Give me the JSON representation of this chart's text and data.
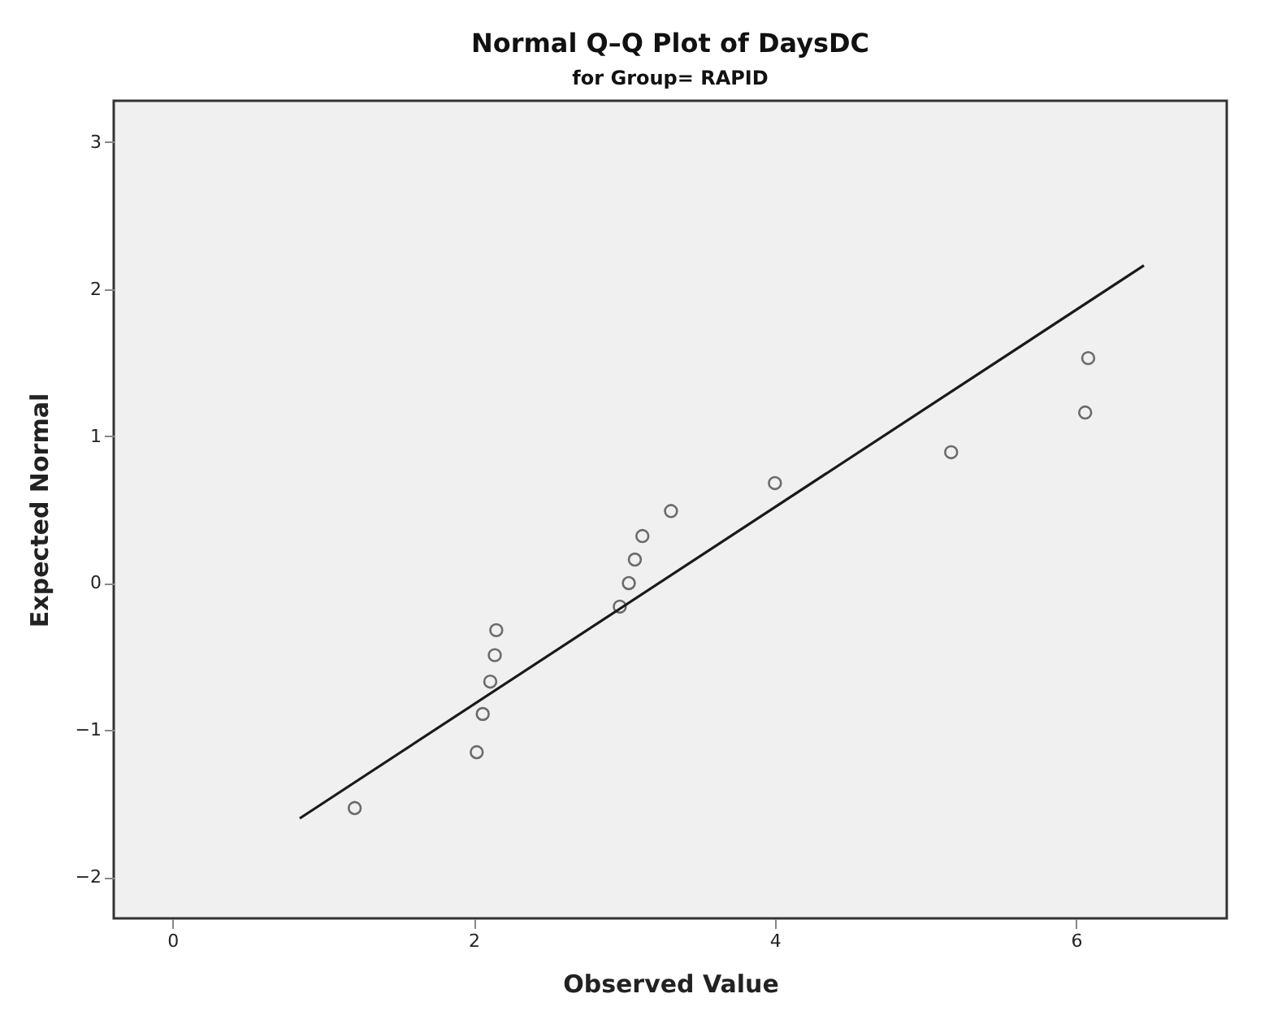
{
  "chart_data": {
    "type": "scatter",
    "title": "Normal Q–Q Plot of DaysDC",
    "subtitle": "for Group= RAPID",
    "xlabel": "Observed Value",
    "ylabel": "Expected Normal",
    "xlim": [
      -0.39,
      7.0
    ],
    "ylim": [
      -2.28,
      3.28
    ],
    "xticks": [
      0,
      2,
      4,
      6
    ],
    "yticks": [
      -2,
      -1,
      0,
      1,
      2,
      3
    ],
    "grid": false,
    "marker": "circle",
    "series": [
      {
        "type": "scatter",
        "color": "#333333",
        "x": [
          1.21,
          2.02,
          2.06,
          2.11,
          2.14,
          2.15,
          2.97,
          3.03,
          3.07,
          3.12,
          3.31,
          4.0,
          5.17,
          6.06,
          6.08
        ],
        "values": [
          -1.53,
          -1.15,
          -0.89,
          -0.67,
          -0.49,
          -0.32,
          -0.16,
          0,
          0.16,
          0.32,
          0.49,
          0.68,
          0.89,
          1.16,
          1.53
        ]
      },
      {
        "type": "line",
        "color": "#1a1a1a",
        "line_style": "solid",
        "marker": "none",
        "x": [
          0.845,
          6.45
        ],
        "values": [
          -1.6,
          2.16
        ]
      }
    ]
  }
}
